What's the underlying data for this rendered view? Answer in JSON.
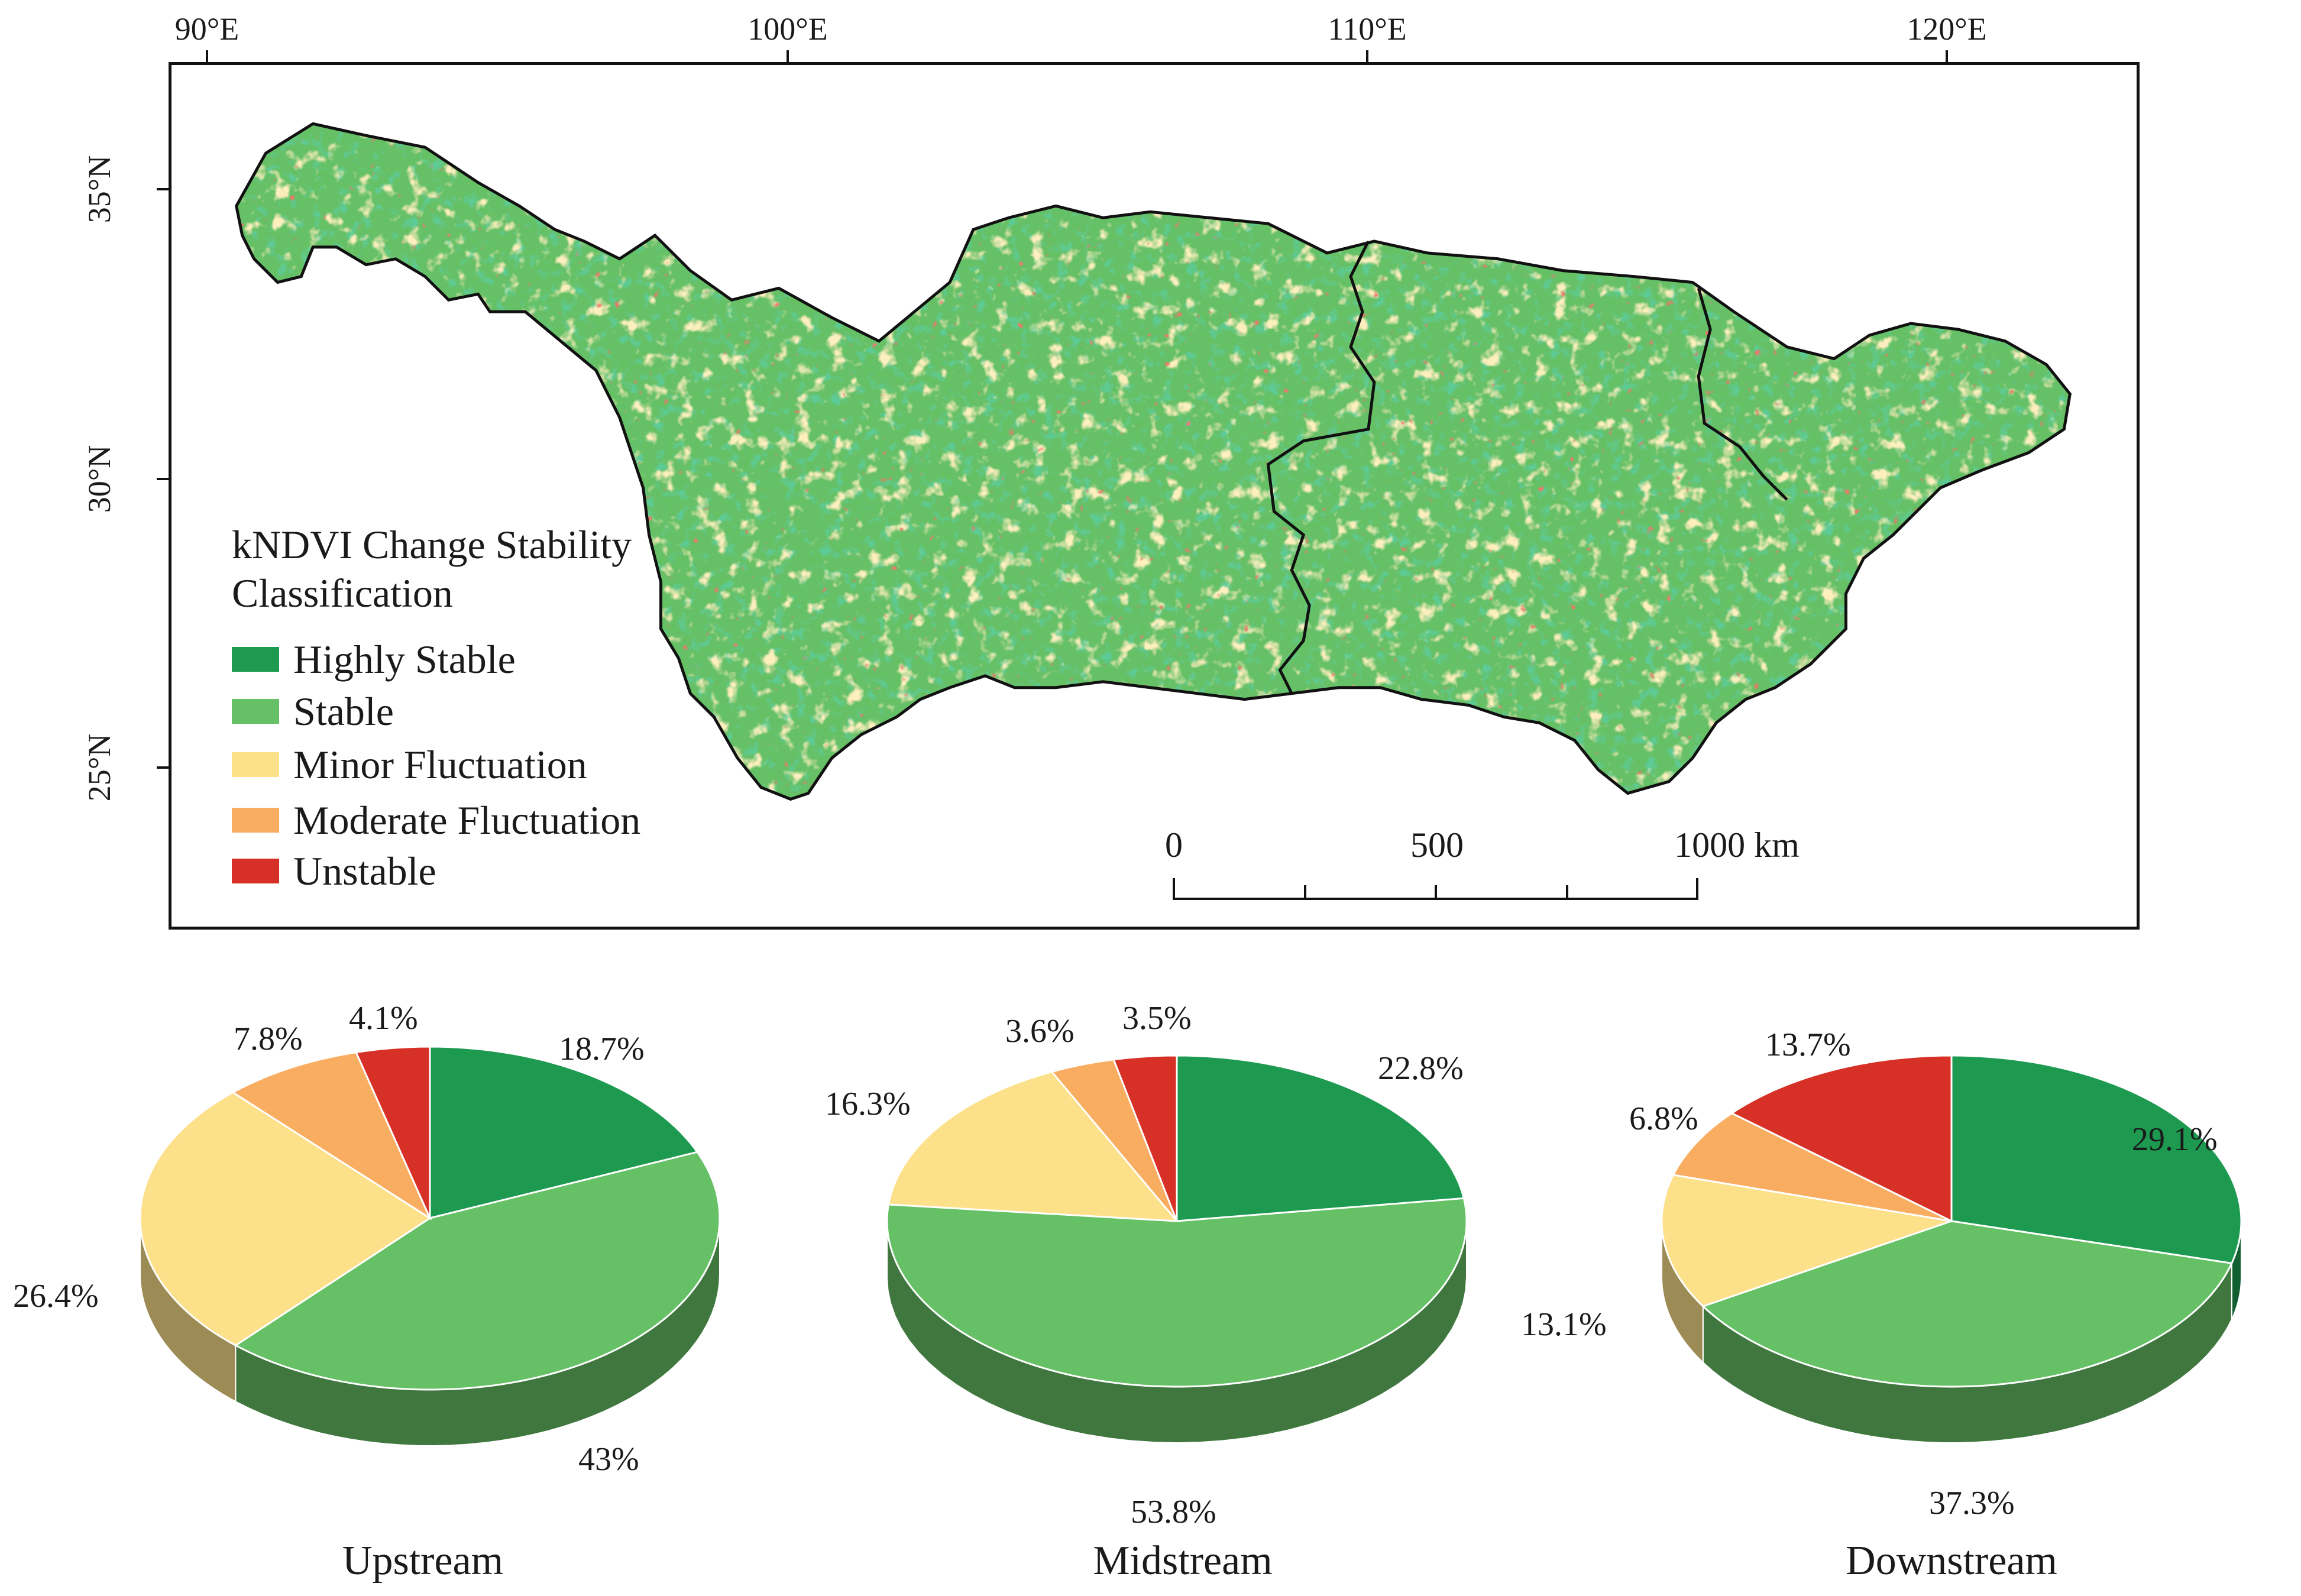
{
  "map": {
    "longitude_labels": [
      "90°E",
      "100°E",
      "110°E",
      "120°E"
    ],
    "latitude_labels": [
      "35°N",
      "30°N",
      "25°N"
    ],
    "legend": {
      "title": "kNDVI Change Stability\nClassification",
      "items": [
        {
          "label": "Highly Stable",
          "color": "#1d9a50"
        },
        {
          "label": "Stable",
          "color": "#66c066"
        },
        {
          "label": "Minor Fluctuation",
          "color": "#fde08a"
        },
        {
          "label": "Moderate Fluctuation",
          "color": "#f9ad61"
        },
        {
          "label": "Unstable",
          "color": "#d73127"
        }
      ]
    },
    "scale_bar": {
      "labels": [
        "0",
        "500",
        "1000 km"
      ]
    }
  },
  "chart_data": [
    {
      "type": "pie",
      "title": "Upstream",
      "categories": [
        "Highly Stable",
        "Stable",
        "Minor Fluctuation",
        "Moderate Fluctuation",
        "Unstable"
      ],
      "values": [
        18.7,
        43,
        26.4,
        7.8,
        4.1
      ],
      "labels": [
        "18.7%",
        "43%",
        "26.4%",
        "7.8%",
        "4.1%"
      ]
    },
    {
      "type": "pie",
      "title": "Midstream",
      "categories": [
        "Highly Stable",
        "Stable",
        "Minor Fluctuation",
        "Moderate Fluctuation",
        "Unstable"
      ],
      "values": [
        22.8,
        53.8,
        16.3,
        3.6,
        3.5
      ],
      "labels": [
        "22.8%",
        "53.8%",
        "16.3%",
        "3.6%",
        "3.5%"
      ]
    },
    {
      "type": "pie",
      "title": "Downstream",
      "categories": [
        "Highly Stable",
        "Stable",
        "Minor Fluctuation",
        "Moderate Fluctuation",
        "Unstable"
      ],
      "values": [
        29.1,
        37.3,
        13.1,
        6.8,
        13.7
      ],
      "labels": [
        "29.1%",
        "37.3%",
        "13.1%",
        "6.8%",
        "13.7%"
      ]
    }
  ]
}
